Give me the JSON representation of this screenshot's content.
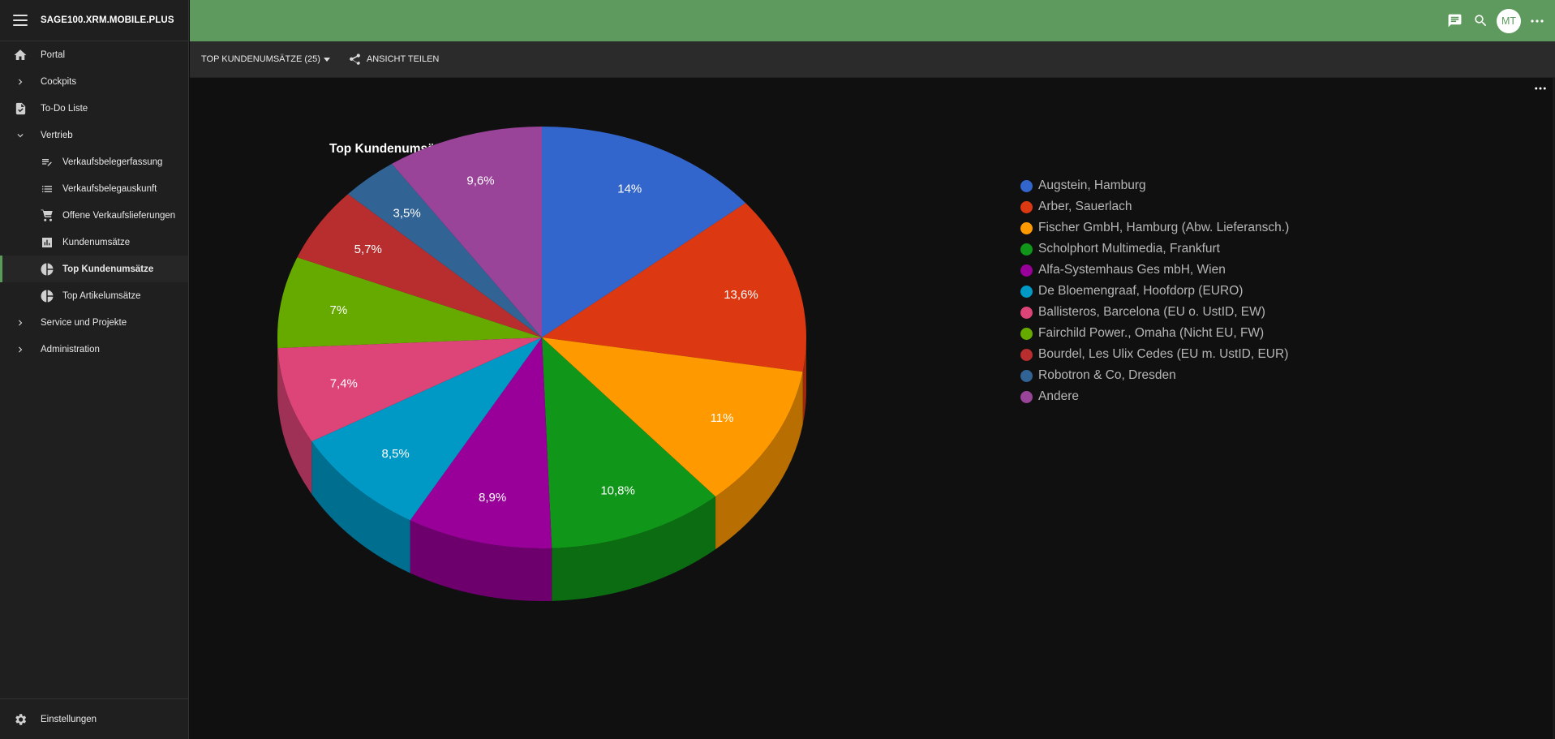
{
  "app": {
    "title": "SAGE100.XRM.MOBILE.PLUS"
  },
  "sidebar": {
    "items": [
      {
        "label": "Portal",
        "icon": "home-icon"
      },
      {
        "label": "Cockpits",
        "icon": "chevron-right-icon"
      },
      {
        "label": "To-Do Liste",
        "icon": "task-check-icon"
      },
      {
        "label": "Vertrieb",
        "icon": "chevron-down-icon"
      },
      {
        "label": "Verkaufsbelegerfassung",
        "icon": "edit-list-icon"
      },
      {
        "label": "Verkaufsbelegauskunft",
        "icon": "list-icon"
      },
      {
        "label": "Offene Verkaufslieferungen",
        "icon": "cart-icon"
      },
      {
        "label": "Kundenumsätze",
        "icon": "bar-chart-icon"
      },
      {
        "label": "Top Kundenumsätze",
        "icon": "pie-chart-icon",
        "active": true
      },
      {
        "label": "Top Artikelumsätze",
        "icon": "pie-chart-icon"
      },
      {
        "label": "Service und Projekte",
        "icon": "chevron-right-icon"
      },
      {
        "label": "Administration",
        "icon": "chevron-right-icon"
      }
    ],
    "footer": {
      "label": "Einstellungen",
      "icon": "gear-icon"
    }
  },
  "header": {
    "avatar_initials": "MT",
    "icons": [
      "chat-icon",
      "search-icon",
      "more-horizontal-icon"
    ],
    "accent_color": "#5e9a5e"
  },
  "toolbar": {
    "view_select": "TOP KUNDENUMSÄTZE (25)",
    "share_label": "ANSICHT TEILEN"
  },
  "chart_data": {
    "type": "pie",
    "title": "Top Kundenumsätze",
    "legend_position": "right",
    "slices": [
      {
        "label": "Augstein, Hamburg",
        "value": 14,
        "display": "14%",
        "color": "#3366cc"
      },
      {
        "label": "Arber, Sauerlach",
        "value": 13.6,
        "display": "13,6%",
        "color": "#dc3912"
      },
      {
        "label": "Fischer GmbH, Hamburg (Abw. Lieferansch.)",
        "value": 11,
        "display": "11%",
        "color": "#ff9900"
      },
      {
        "label": "Scholphort Multimedia, Frankfurt",
        "value": 10.8,
        "display": "10,8%",
        "color": "#109618"
      },
      {
        "label": "Alfa-Systemhaus Ges mbH, Wien",
        "value": 8.9,
        "display": "8,9%",
        "color": "#990099"
      },
      {
        "label": "De Bloemengraaf, Hoofdorp (EURO)",
        "value": 8.5,
        "display": "8,5%",
        "color": "#0099c6"
      },
      {
        "label": "Ballisteros, Barcelona (EU o. UstID, EW)",
        "value": 7.4,
        "display": "7,4%",
        "color": "#dd4477"
      },
      {
        "label": "Fairchild Power., Omaha (Nicht EU, FW)",
        "value": 7,
        "display": "7%",
        "color": "#66aa00"
      },
      {
        "label": "Bourdel, Les Ulix Cedes (EU m. UstID, EUR)",
        "value": 5.7,
        "display": "5,7%",
        "color": "#b82e2e"
      },
      {
        "label": "Robotron & Co, Dresden",
        "value": 3.5,
        "display": "3,5%",
        "color": "#316395"
      },
      {
        "label": "Andere",
        "value": 9.6,
        "display": "9,6%",
        "color": "#994499"
      }
    ]
  }
}
